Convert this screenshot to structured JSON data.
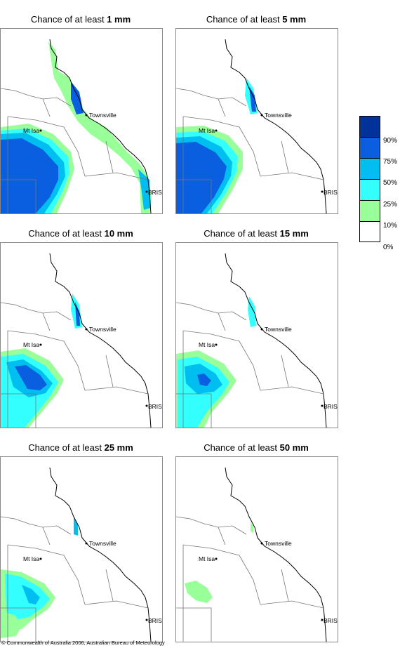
{
  "panels": [
    {
      "title_prefix": "Chance of at least ",
      "title_bold": "1 mm"
    },
    {
      "title_prefix": "Chance of at least ",
      "title_bold": "5 mm"
    },
    {
      "title_prefix": "Chance of at least ",
      "title_bold": "10 mm"
    },
    {
      "title_prefix": "Chance of at least ",
      "title_bold": "15 mm"
    },
    {
      "title_prefix": "Chance of at least ",
      "title_bold": "25 mm"
    },
    {
      "title_prefix": "Chance of at least ",
      "title_bold": "50 mm"
    }
  ],
  "places": {
    "townsville": "Townsville",
    "mt_isa": "Mt Isa",
    "bris": "BRIS"
  },
  "legend": {
    "labels": [
      "90%",
      "75%",
      "50%",
      "25%",
      "10%",
      "0%"
    ],
    "colors": [
      "#003399",
      "#0a5fe0",
      "#00bff0",
      "#33ffff",
      "#99ff99",
      "#ffffff"
    ]
  },
  "footer": "© Commonwealth of Australia 2006, Australian Bureau of Meteorology"
}
